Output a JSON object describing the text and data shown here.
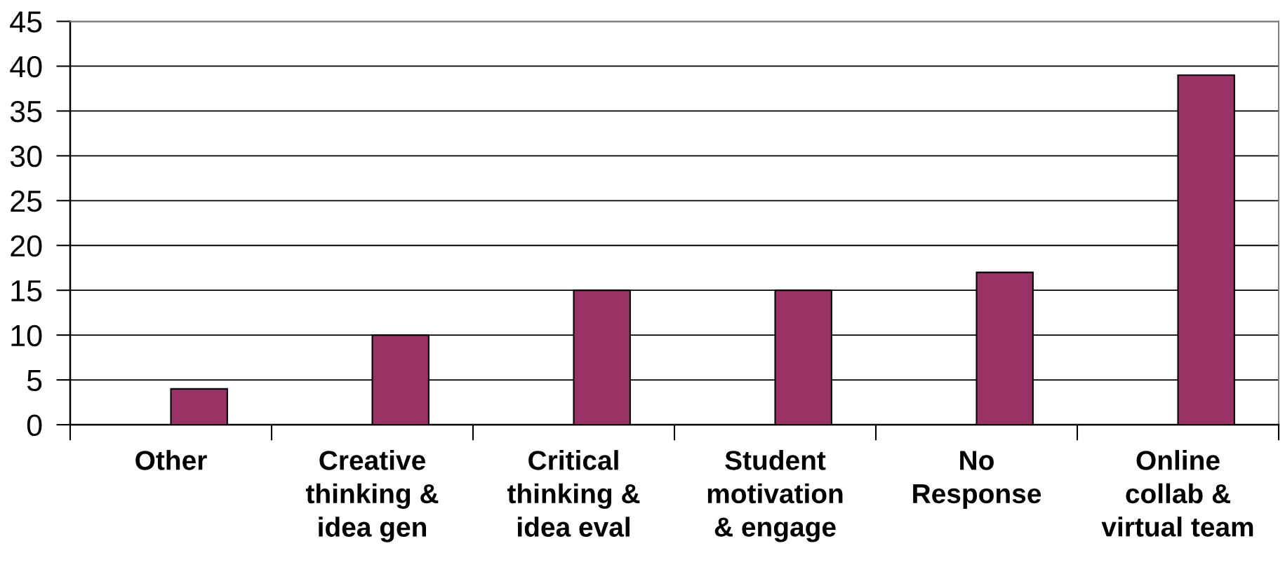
{
  "chart_data": {
    "type": "bar",
    "categories": [
      "Other",
      "Creative\nthinking &\nidea gen",
      "Critical\nthinking &\nidea eval",
      "Student\nmotivation\n& engage",
      "No\nResponse",
      "Online\ncollab &\nvirtual team"
    ],
    "values": [
      4,
      10,
      15,
      15,
      17,
      39
    ],
    "color": "#993366",
    "ylim": [
      0,
      45
    ],
    "yticks": [
      0,
      5,
      10,
      15,
      20,
      25,
      30,
      35,
      40,
      45
    ],
    "grid": "y",
    "legend": false
  }
}
